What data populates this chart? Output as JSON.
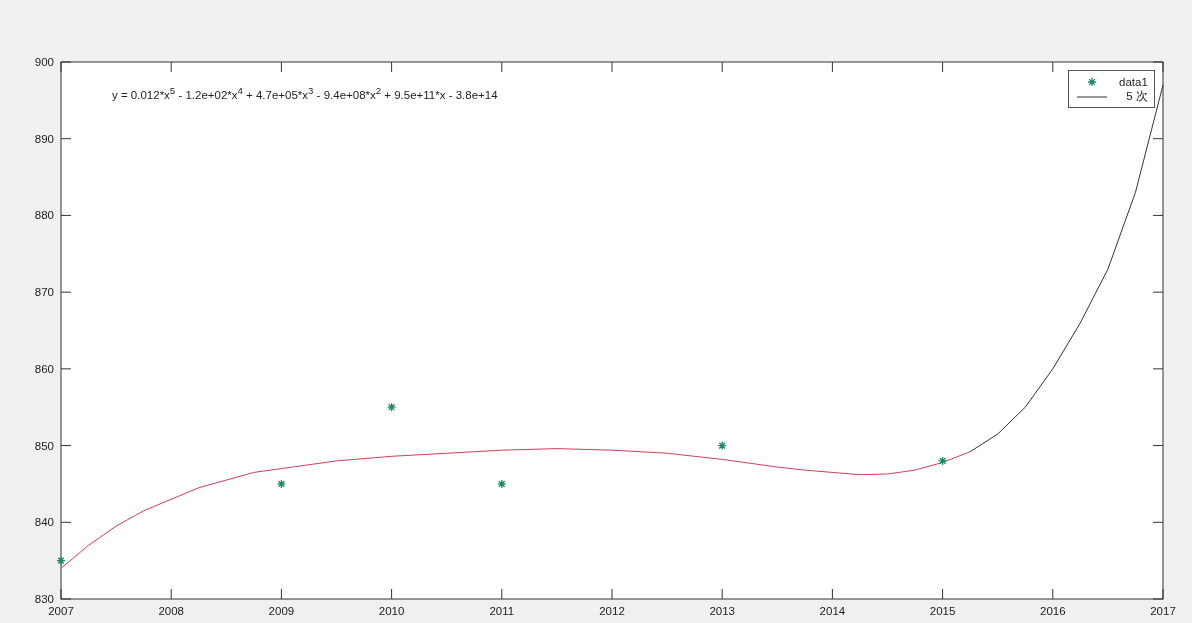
{
  "chart_data": {
    "type": "scatter",
    "xlim": [
      2007,
      2017
    ],
    "ylim": [
      830,
      900
    ],
    "xticks": [
      2007,
      2008,
      2009,
      2010,
      2011,
      2012,
      2013,
      2014,
      2015,
      2016,
      2017
    ],
    "yticks": [
      830,
      840,
      850,
      860,
      870,
      880,
      890,
      900
    ],
    "grid": false,
    "legend": "top right",
    "annotations": [
      "y = 0.012*x$^{5}$ - 1.2e+02*x$^{4}$ + 4.7e+05*x$^{3}$ - 9.4e+08*x$^{2}$ + 9.5e+11*x - 3.8e+14"
    ],
    "series": [
      {
        "type": "line",
        "color": "#d0405c",
        "line_style": "solid",
        "marker": "none",
        "x": [
          2007,
          2007.25,
          2007.5,
          2007.75,
          2008,
          2008.25,
          2008.5,
          2008.75,
          2009,
          2009.25,
          2009.5,
          2009.75,
          2010,
          2010.5,
          2011,
          2011.5,
          2012,
          2012.5,
          2013,
          2013.25,
          2013.5,
          2013.75,
          2014,
          2014.25,
          2014.5,
          2014.75,
          2015,
          2015.25
        ],
        "values": [
          834,
          837,
          839.5,
          841.5,
          843,
          844.5,
          845.5,
          846.5,
          847,
          847.5,
          848,
          848.3,
          848.6,
          849,
          849.4,
          849.6,
          849.4,
          849,
          848.2,
          847.7,
          847.2,
          846.8,
          846.5,
          846.2,
          846.3,
          846.8,
          847.8,
          849.2
        ]
      },
      {
        "name": "data1",
        "color": "#1a8a6a",
        "marker": "cross",
        "x": [
          2007,
          2009,
          2010,
          2011,
          2013,
          2015
        ],
        "values": [
          835,
          845,
          855,
          845,
          850,
          848
        ]
      },
      {
        "type": "line",
        "name": "5 次",
        "color": "#333333",
        "line_style": "solid",
        "marker": "none",
        "x": [
          2015.25,
          2015.5,
          2015.75,
          2016,
          2016.25,
          2016.5,
          2016.75,
          2017
        ],
        "values": [
          849.2,
          851.5,
          855,
          860,
          866,
          873,
          883,
          897
        ]
      }
    ]
  }
}
